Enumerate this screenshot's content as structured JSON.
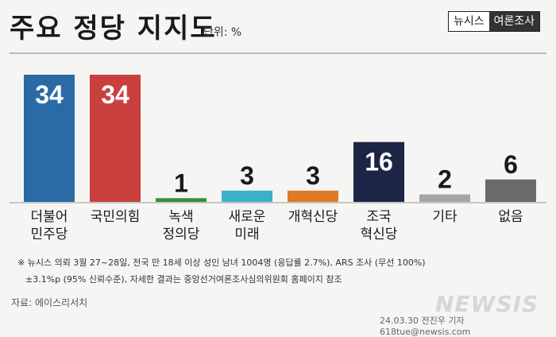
{
  "header": {
    "title": "주요 정당 지지도",
    "unit": "단위: %",
    "brand_left": "뉴시스",
    "brand_right": "여론조사"
  },
  "chart_data": {
    "type": "bar",
    "categories": [
      "더불어\n민주당",
      "국민의힘",
      "녹색\n정의당",
      "새로운\n미래",
      "개혁신당",
      "조국\n혁신당",
      "기타",
      "없음"
    ],
    "values": [
      34,
      34,
      1,
      3,
      3,
      16,
      2,
      6
    ],
    "colors": [
      "#2a6aa5",
      "#c9403e",
      "#3a8f3a",
      "#3bb0c8",
      "#e07a26",
      "#1c2546",
      "#a5a5a5",
      "#6b6b6b"
    ],
    "title": "주요 정당 지지도",
    "ylabel": "단위: %",
    "ylim": [
      0,
      34
    ]
  },
  "footnotes": {
    "line1": "※ 뉴시스 의뢰 3월 27~28일, 전국 만 18세 이상 성인 남녀 1004명 (응답률 2.7%), ARS 조사 (무선 100%)",
    "line2": "±3.1%p (95% 신뢰수준), 자세한 결과는 중앙선거여론조사심의위원회 홈페이지 참조"
  },
  "source": "자료: 에이스리서치",
  "watermark": "NEWSIS",
  "credit": "24.03.30 전진우 기자 618tue@newsis.com"
}
